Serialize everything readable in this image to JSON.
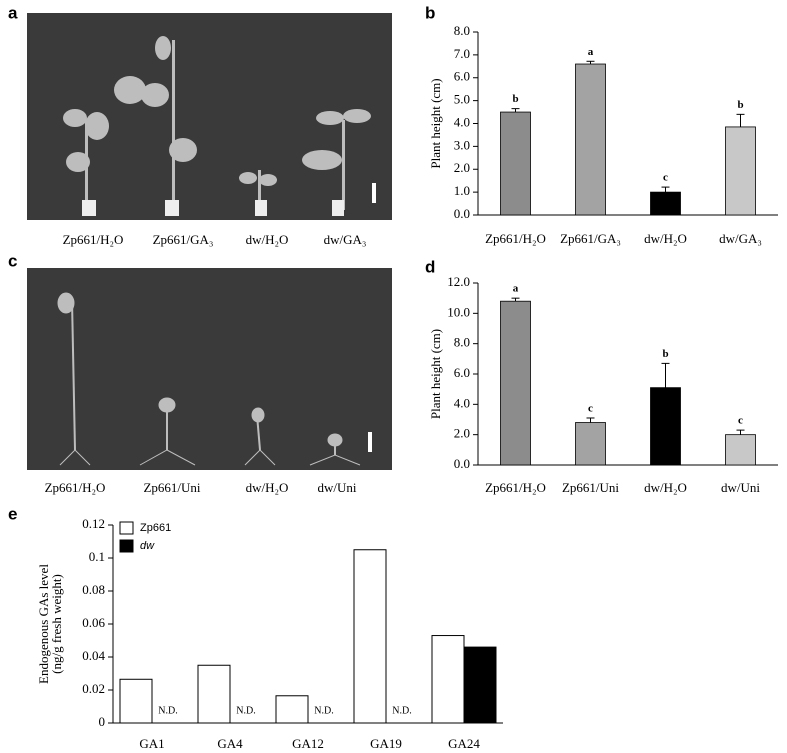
{
  "panel_labels": [
    "a",
    "b",
    "c",
    "d",
    "e"
  ],
  "photo_a": {
    "captions": [
      "Zp661/H₂O",
      "Zp661/GA₃",
      "dw/H₂O",
      "dw/GA₃"
    ]
  },
  "photo_c": {
    "captions": [
      "Zp661/H₂O",
      "Zp661/Uni",
      "dw/H₂O",
      "dw/Uni"
    ]
  },
  "chart_data": [
    {
      "type": "bar",
      "ylabel": "Plant height  (cm)",
      "categories": [
        "Zp661/H₂O",
        "Zp661/GA₃",
        "dw/H₂O",
        "dw/GA₃"
      ],
      "values": [
        4.5,
        6.6,
        1.0,
        3.85
      ],
      "error": [
        0.15,
        0.12,
        0.22,
        0.55
      ],
      "letters": [
        "b",
        "a",
        "c",
        "b"
      ],
      "colors": [
        "#8c8c8c",
        "#a3a3a3",
        "#000000",
        "#c8c8c8"
      ],
      "ylim": [
        0,
        8
      ],
      "yticks": [
        {
          "value": 0,
          "label": "0.0"
        },
        {
          "value": 1,
          "label": "1.0"
        },
        {
          "value": 2,
          "label": "2.0"
        },
        {
          "value": 3,
          "label": "3.0"
        },
        {
          "value": 4,
          "label": "4.0"
        },
        {
          "value": 5,
          "label": "5.0"
        },
        {
          "value": 6,
          "label": "6.0"
        },
        {
          "value": 7,
          "label": "7.0"
        },
        {
          "value": 8,
          "label": "8.0"
        }
      ]
    },
    {
      "type": "bar",
      "ylabel": "Plant height (cm)",
      "categories": [
        "Zp661/H₂O",
        "Zp661/Uni",
        "dw/H₂O",
        "dw/Uni"
      ],
      "values": [
        10.8,
        2.8,
        5.1,
        2.0
      ],
      "error": [
        0.2,
        0.3,
        1.6,
        0.3
      ],
      "letters": [
        "a",
        "c",
        "b",
        "c"
      ],
      "colors": [
        "#8c8c8c",
        "#a3a3a3",
        "#000000",
        "#c8c8c8"
      ],
      "ylim": [
        0,
        12
      ],
      "yticks": [
        {
          "value": 0,
          "label": "0.0"
        },
        {
          "value": 2,
          "label": "2.0"
        },
        {
          "value": 4,
          "label": "4.0"
        },
        {
          "value": 6,
          "label": "6.0"
        },
        {
          "value": 8,
          "label": "8.0"
        },
        {
          "value": 10,
          "label": "10.0"
        },
        {
          "value": 12,
          "label": "12.0"
        }
      ]
    },
    {
      "type": "grouped",
      "ylabel": [
        "Endogenous GAs level",
        "(ng/g fresh weight)"
      ],
      "categories": [
        "GA1",
        "GA4",
        "GA12",
        "GA19",
        "GA24"
      ],
      "series": [
        {
          "name": "Zp661",
          "color": "#ffffff",
          "values": [
            0.0265,
            0.035,
            0.0165,
            0.105,
            0.053
          ]
        },
        {
          "name": "dw",
          "color": "#000000",
          "values": [
            null,
            null,
            null,
            null,
            0.046
          ],
          "value_labels": [
            "N.D.",
            "N.D.",
            "N.D.",
            "N.D.",
            null
          ]
        }
      ],
      "ylim": [
        0,
        0.12
      ],
      "yticks": [
        0,
        0.02,
        0.04,
        0.06,
        0.08,
        0.1,
        0.12
      ]
    }
  ]
}
